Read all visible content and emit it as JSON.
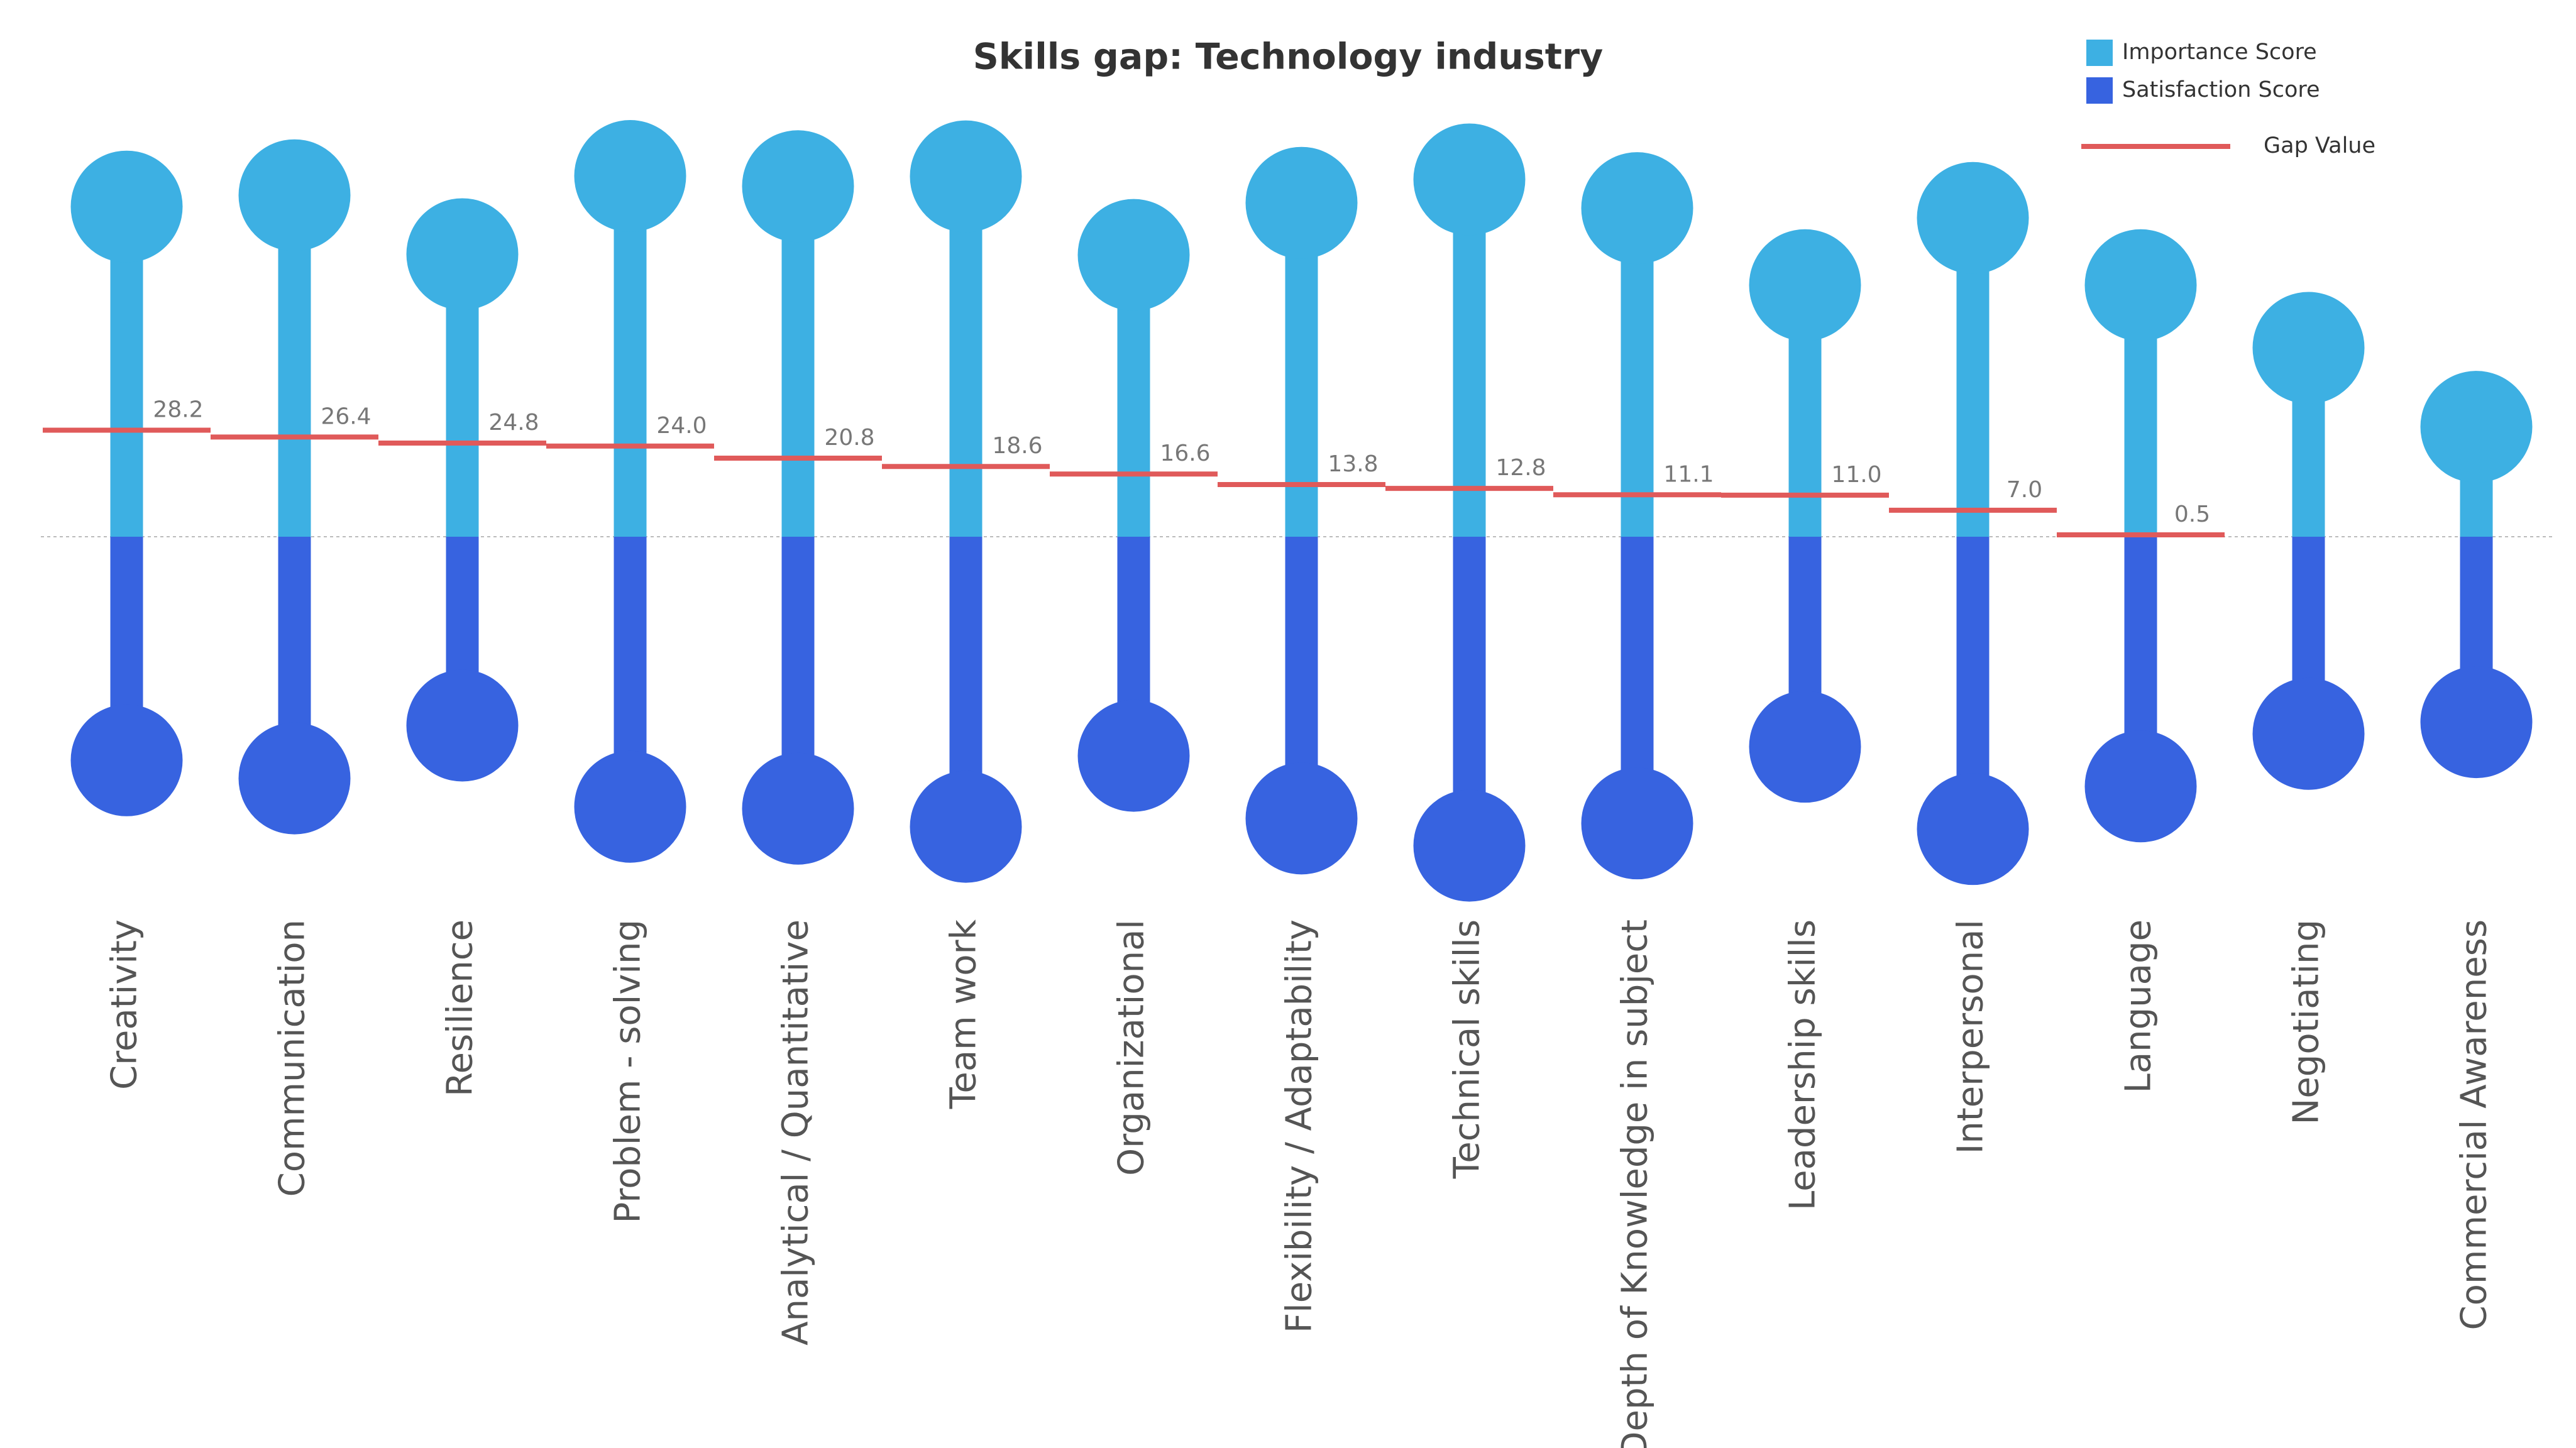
{
  "chart_data": {
    "type": "diverging-dumbbell",
    "title": "Skills gap: Technology industry",
    "categories": [
      "Creativity",
      "Communication",
      "Resilience",
      "Problem - solving",
      "Analytical / Quantitative",
      "Team work",
      "Organizational",
      "Flexibility / Adaptability",
      "Technical skills",
      "Depth of Knowledge in subject",
      "Leadership skills",
      "Interpersonal",
      "Language",
      "Negotiating",
      "Commercial Awareness"
    ],
    "series": [
      {
        "name": "Importance Score",
        "color": "#3db0e3",
        "values": [
          87.4,
          90.4,
          74.8,
          95.5,
          92.8,
          95.4,
          74.6,
          88.4,
          94.6,
          87.0,
          66.6,
          84.4,
          66.6,
          50.0,
          29.1
        ]
      },
      {
        "name": "Satisfaction Score",
        "color": "#3763e0",
        "values": [
          59.2,
          64.0,
          50.0,
          71.5,
          72.0,
          76.8,
          58.0,
          74.6,
          81.8,
          75.9,
          55.6,
          77.4,
          66.1,
          52.2,
          49.1
        ]
      },
      {
        "name": "Gap Value",
        "color": "#e05a5a",
        "values": [
          28.2,
          26.4,
          24.8,
          24.0,
          20.8,
          18.6,
          16.6,
          13.8,
          12.8,
          11.1,
          11.0,
          7.0,
          0.5,
          null,
          null
        ],
        "value_labels": [
          "28.2",
          "26.4",
          "24.8",
          "24.0",
          "20.8",
          "18.6",
          "16.6",
          "13.8",
          "12.8",
          "11.1",
          "11.0",
          "7.0",
          "0.5",
          null,
          null
        ]
      }
    ],
    "ylim": [
      0,
      100
    ]
  }
}
